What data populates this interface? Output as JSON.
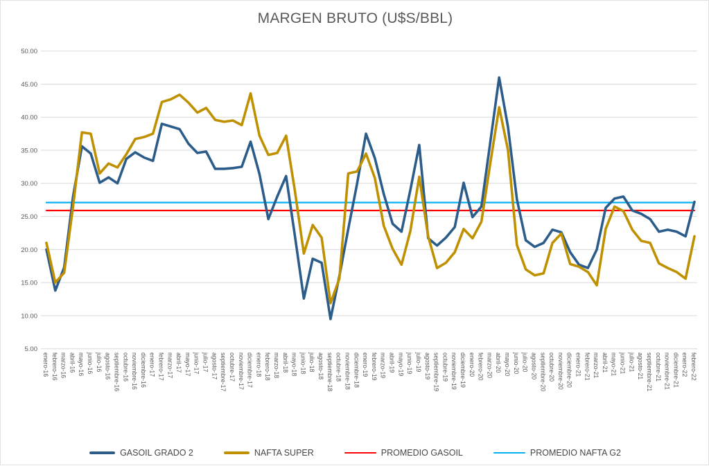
{
  "chart_data": {
    "type": "line",
    "title": "MARGEN BRUTO (U$S/BBL)",
    "xlabel": "",
    "ylabel": "",
    "ylim": [
      5,
      50
    ],
    "ytick_step": 5,
    "ytick_decimals": 2,
    "grid": "horizontal",
    "legend_position": "bottom",
    "colors": {
      "grid": "#d9d9d9",
      "axis_text": "#595959",
      "title_text": "#595959",
      "legend_text": "#454545",
      "background": "#ffffff"
    },
    "x": [
      "enero-16",
      "febrero-16",
      "marzo-16",
      "abril-16",
      "mayo-16",
      "junio-16",
      "julio-16",
      "agosto-16",
      "septiembre-16",
      "octubre-16",
      "noviembre-16",
      "diciembre-16",
      "enero-17",
      "febrero-17",
      "marzo-17",
      "abril-17",
      "mayo-17",
      "junio-17",
      "julio-17",
      "agosto-17",
      "septiembre-17",
      "octubre-17",
      "noviembre-17",
      "diciembre-17",
      "enero-18",
      "febrero-18",
      "marzo-18",
      "abril-18",
      "mayo-18",
      "junio-18",
      "julio-18",
      "agosto-18",
      "septiembre-18",
      "octubre-18",
      "noviembre-18",
      "diciembre-18",
      "enero-19",
      "febrero-19",
      "marzo-19",
      "abril-19",
      "mayo-19",
      "junio-19",
      "julio-19",
      "agosto-19",
      "septiembre-19",
      "octubre-19",
      "noviembre-19",
      "diciembre-19",
      "enero-20",
      "febrero-20",
      "marzo-20",
      "abril-20",
      "mayo-20",
      "junio-20",
      "julio-20",
      "agosto-20",
      "septiembre-20",
      "octubre-20",
      "noviembre-20",
      "diciembre-20",
      "enero-21",
      "febrero-21",
      "marzo-21",
      "abril-21",
      "mayo-21",
      "junio-21",
      "julio-21",
      "agosto-21",
      "septiembre-21",
      "octubre-21",
      "noviembre-21",
      "diciembre-21",
      "enero-22",
      "febrero-22"
    ],
    "series": [
      {
        "name": "GASOIL GRADO 2",
        "color": "#2b5c8a",
        "style": "thick",
        "values": [
          20.0,
          13.8,
          17.3,
          28.0,
          35.6,
          34.5,
          30.1,
          30.9,
          30.0,
          33.7,
          34.7,
          33.9,
          33.4,
          39.0,
          38.6,
          38.2,
          36.0,
          34.6,
          34.8,
          32.2,
          32.2,
          32.3,
          32.5,
          36.3,
          31.4,
          24.6,
          28.0,
          31.1,
          22.0,
          12.6,
          18.6,
          18.0,
          9.5,
          16.0,
          23.1,
          30.0,
          37.5,
          33.8,
          28.4,
          23.9,
          22.7,
          29.0,
          35.8,
          21.7,
          20.6,
          21.8,
          23.4,
          30.1,
          24.9,
          26.5,
          36.2,
          46.0,
          38.5,
          27.6,
          21.4,
          20.4,
          21.0,
          23.0,
          22.6,
          19.6,
          17.7,
          17.2,
          20.0,
          26.3,
          27.7,
          28.0,
          25.9,
          25.4,
          24.6,
          22.7,
          23.0,
          22.7,
          22.0,
          27.2
        ]
      },
      {
        "name": "NAFTA SUPER",
        "color": "#bf9000",
        "style": "thick",
        "values": [
          21.0,
          15.0,
          16.5,
          26.5,
          37.7,
          37.5,
          31.5,
          33.0,
          32.4,
          34.4,
          36.7,
          37.0,
          37.5,
          42.3,
          42.7,
          43.4,
          42.2,
          40.7,
          41.4,
          39.6,
          39.3,
          39.5,
          38.8,
          43.6,
          37.2,
          34.3,
          34.6,
          37.2,
          28.8,
          19.4,
          23.7,
          21.8,
          11.9,
          15.6,
          31.5,
          31.8,
          34.5,
          30.8,
          23.6,
          20.1,
          17.7,
          22.8,
          31.0,
          22.0,
          17.2,
          18.0,
          19.6,
          23.1,
          21.7,
          24.2,
          33.0,
          41.5,
          35.0,
          20.7,
          17.0,
          16.1,
          16.4,
          21.0,
          22.4,
          17.8,
          17.4,
          16.6,
          14.6,
          23.1,
          26.5,
          25.8,
          23.0,
          21.3,
          21.0,
          17.9,
          17.2,
          16.6,
          15.6,
          22.0
        ]
      },
      {
        "name": "PROMEDIO GASOIL",
        "color": "#ff0000",
        "style": "thin",
        "constant": 25.9
      },
      {
        "name": "PROMEDIO NAFTA G2",
        "color": "#00b0f0",
        "style": "thin",
        "constant": 27.1
      }
    ]
  }
}
